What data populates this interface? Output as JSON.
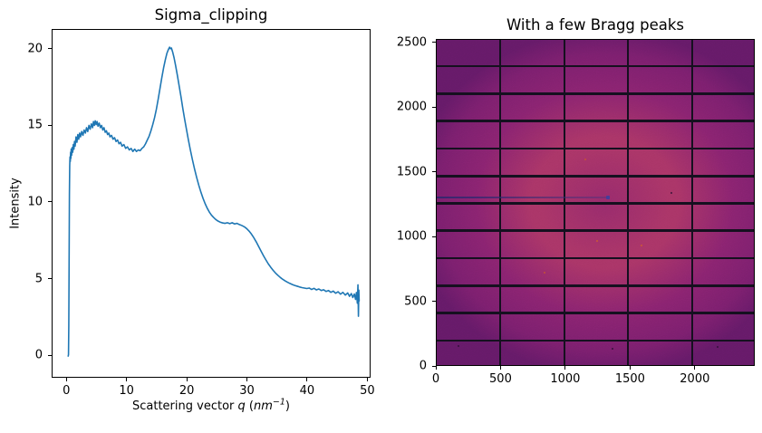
{
  "figure": {
    "background": "#ffffff"
  },
  "chart_data": [
    {
      "type": "line",
      "title": "Sigma_clipping",
      "xlabel": "Scattering vector q (nm−1)",
      "xlabel_parts": {
        "prefix": "Scattering vector ",
        "q": "q",
        "open": " (",
        "unit": "nm",
        "sup": "−1",
        "close": ")"
      },
      "ylabel": "Intensity",
      "line_color": "#1f77b4",
      "line_width": 1.6,
      "xlim": [
        -2.45,
        50.55
      ],
      "ylim": [
        -1.47,
        21.28
      ],
      "xticks": [
        0,
        10,
        20,
        30,
        40,
        50
      ],
      "yticks": [
        0,
        5,
        10,
        15,
        20
      ],
      "grid": false,
      "legend": null,
      "points": [
        [
          0.15,
          0.0
        ],
        [
          0.2,
          0.1
        ],
        [
          0.25,
          2.0
        ],
        [
          0.3,
          6.0
        ],
        [
          0.35,
          10.5
        ],
        [
          0.4,
          12.4
        ],
        [
          0.45,
          13.0
        ],
        [
          0.5,
          12.7
        ],
        [
          0.55,
          13.3
        ],
        [
          0.6,
          12.9
        ],
        [
          0.65,
          13.5
        ],
        [
          0.72,
          13.1
        ],
        [
          0.8,
          13.6
        ],
        [
          0.9,
          13.3
        ],
        [
          1.0,
          13.8
        ],
        [
          1.1,
          13.5
        ],
        [
          1.2,
          14.0
        ],
        [
          1.3,
          13.7
        ],
        [
          1.45,
          14.3
        ],
        [
          1.6,
          13.95
        ],
        [
          1.75,
          14.45
        ],
        [
          1.9,
          14.15
        ],
        [
          2.05,
          14.55
        ],
        [
          2.2,
          14.3
        ],
        [
          2.4,
          14.65
        ],
        [
          2.6,
          14.4
        ],
        [
          2.8,
          14.75
        ],
        [
          3.0,
          14.55
        ],
        [
          3.2,
          14.9
        ],
        [
          3.4,
          14.65
        ],
        [
          3.6,
          15.05
        ],
        [
          3.8,
          14.8
        ],
        [
          4.0,
          15.15
        ],
        [
          4.2,
          14.9
        ],
        [
          4.35,
          15.3
        ],
        [
          4.5,
          15.05
        ],
        [
          4.65,
          15.35
        ],
        [
          4.8,
          15.1
        ],
        [
          4.95,
          15.3
        ],
        [
          5.1,
          15.0
        ],
        [
          5.3,
          15.2
        ],
        [
          5.5,
          14.9
        ],
        [
          5.7,
          15.05
        ],
        [
          5.9,
          14.75
        ],
        [
          6.1,
          14.9
        ],
        [
          6.3,
          14.6
        ],
        [
          6.5,
          14.7
        ],
        [
          6.7,
          14.45
        ],
        [
          6.9,
          14.55
        ],
        [
          7.1,
          14.3
        ],
        [
          7.35,
          14.4
        ],
        [
          7.6,
          14.15
        ],
        [
          7.85,
          14.25
        ],
        [
          8.1,
          14.0
        ],
        [
          8.35,
          14.1
        ],
        [
          8.6,
          13.85
        ],
        [
          8.85,
          13.95
        ],
        [
          9.1,
          13.7
        ],
        [
          9.4,
          13.8
        ],
        [
          9.7,
          13.55
        ],
        [
          10.0,
          13.65
        ],
        [
          10.3,
          13.45
        ],
        [
          10.6,
          13.55
        ],
        [
          10.9,
          13.35
        ],
        [
          11.2,
          13.5
        ],
        [
          11.5,
          13.35
        ],
        [
          11.8,
          13.45
        ],
        [
          12.1,
          13.4
        ],
        [
          12.4,
          13.55
        ],
        [
          12.7,
          13.65
        ],
        [
          13.0,
          13.85
        ],
        [
          13.3,
          14.1
        ],
        [
          13.6,
          14.35
        ],
        [
          13.9,
          14.7
        ],
        [
          14.2,
          15.1
        ],
        [
          14.5,
          15.55
        ],
        [
          14.8,
          16.1
        ],
        [
          15.1,
          16.75
        ],
        [
          15.4,
          17.45
        ],
        [
          15.7,
          18.15
        ],
        [
          16.0,
          18.8
        ],
        [
          16.3,
          19.35
        ],
        [
          16.55,
          19.75
        ],
        [
          16.8,
          20.0
        ],
        [
          17.0,
          20.15
        ],
        [
          17.15,
          20.05
        ],
        [
          17.3,
          20.1
        ],
        [
          17.5,
          19.85
        ],
        [
          17.75,
          19.45
        ],
        [
          18.0,
          18.95
        ],
        [
          18.3,
          18.3
        ],
        [
          18.6,
          17.6
        ],
        [
          18.9,
          16.9
        ],
        [
          19.2,
          16.15
        ],
        [
          19.5,
          15.45
        ],
        [
          19.8,
          14.8
        ],
        [
          20.1,
          14.15
        ],
        [
          20.45,
          13.45
        ],
        [
          20.8,
          12.8
        ],
        [
          21.15,
          12.2
        ],
        [
          21.5,
          11.65
        ],
        [
          21.85,
          11.15
        ],
        [
          22.2,
          10.7
        ],
        [
          22.55,
          10.3
        ],
        [
          22.9,
          9.95
        ],
        [
          23.25,
          9.65
        ],
        [
          23.6,
          9.4
        ],
        [
          23.95,
          9.2
        ],
        [
          24.3,
          9.05
        ],
        [
          24.65,
          8.92
        ],
        [
          25.0,
          8.82
        ],
        [
          25.4,
          8.74
        ],
        [
          25.8,
          8.69
        ],
        [
          26.2,
          8.66
        ],
        [
          26.6,
          8.7
        ],
        [
          27.0,
          8.64
        ],
        [
          27.4,
          8.7
        ],
        [
          27.8,
          8.62
        ],
        [
          28.2,
          8.66
        ],
        [
          28.6,
          8.58
        ],
        [
          29.0,
          8.52
        ],
        [
          29.4,
          8.44
        ],
        [
          29.8,
          8.32
        ],
        [
          30.2,
          8.16
        ],
        [
          30.6,
          7.96
        ],
        [
          31.0,
          7.72
        ],
        [
          31.4,
          7.45
        ],
        [
          31.8,
          7.15
        ],
        [
          32.2,
          6.85
        ],
        [
          32.6,
          6.55
        ],
        [
          33.0,
          6.28
        ],
        [
          33.4,
          6.02
        ],
        [
          33.8,
          5.8
        ],
        [
          34.2,
          5.6
        ],
        [
          34.6,
          5.42
        ],
        [
          35.0,
          5.27
        ],
        [
          35.4,
          5.13
        ],
        [
          35.8,
          5.01
        ],
        [
          36.2,
          4.91
        ],
        [
          36.6,
          4.82
        ],
        [
          37.0,
          4.74
        ],
        [
          37.4,
          4.67
        ],
        [
          37.8,
          4.61
        ],
        [
          38.2,
          4.56
        ],
        [
          38.6,
          4.51
        ],
        [
          39.0,
          4.47
        ],
        [
          39.4,
          4.44
        ],
        [
          39.8,
          4.41
        ],
        [
          40.2,
          4.44
        ],
        [
          40.6,
          4.35
        ],
        [
          41.0,
          4.42
        ],
        [
          41.4,
          4.32
        ],
        [
          41.8,
          4.38
        ],
        [
          42.2,
          4.28
        ],
        [
          42.6,
          4.33
        ],
        [
          43.0,
          4.22
        ],
        [
          43.4,
          4.28
        ],
        [
          43.8,
          4.16
        ],
        [
          44.2,
          4.24
        ],
        [
          44.6,
          4.1
        ],
        [
          45.0,
          4.2
        ],
        [
          45.4,
          4.04
        ],
        [
          45.8,
          4.16
        ],
        [
          46.2,
          3.98
        ],
        [
          46.6,
          4.12
        ],
        [
          46.9,
          3.9
        ],
        [
          47.2,
          4.08
        ],
        [
          47.45,
          3.82
        ],
        [
          47.7,
          4.05
        ],
        [
          47.9,
          3.7
        ],
        [
          48.05,
          4.15
        ],
        [
          48.2,
          3.45
        ],
        [
          48.3,
          4.65
        ],
        [
          48.38,
          2.6
        ],
        [
          48.45,
          4.3
        ],
        [
          48.5,
          3.6
        ]
      ]
    },
    {
      "type": "heatmap",
      "title": "With a few Bragg peaks",
      "xlim": [
        0,
        2463
      ],
      "ylim": [
        0,
        2527
      ],
      "xticks": [
        0,
        500,
        1000,
        1500,
        2000
      ],
      "yticks": [
        0,
        500,
        1000,
        1500,
        2000,
        2500
      ],
      "detector": {
        "columns": 5,
        "rows": 12,
        "module_width": 487,
        "module_height": 195,
        "gap_width": 7,
        "gap_height": 17
      },
      "colors": {
        "corner_dark": "#661a68",
        "mid": "#7c1f6e",
        "ring_bright": "#aa3567",
        "center_dim": "#93286d",
        "gap": "#15101f"
      },
      "streak": {
        "y": 1309,
        "x_start": 0,
        "x_end": 1319,
        "color_left": "rgba(42,38,110,0.85)",
        "color_right": "rgba(62,52,130,0.35)"
      },
      "bragg_peaks": [
        {
          "x": 1319,
          "y": 1309,
          "size": 4,
          "color": "#3c3f9e"
        },
        {
          "x": 1238,
          "y": 973,
          "size": 2,
          "color": "#cf5c31"
        },
        {
          "x": 1581,
          "y": 938,
          "size": 2,
          "color": "#cf5c31"
        },
        {
          "x": 1147,
          "y": 1603,
          "size": 2,
          "color": "#c85530"
        },
        {
          "x": 833,
          "y": 728,
          "size": 2,
          "color": "#c85530"
        }
      ],
      "dead_pixels": [
        {
          "x": 1812,
          "y": 1344
        },
        {
          "x": 168,
          "y": 161
        },
        {
          "x": 1357,
          "y": 140
        },
        {
          "x": 2169,
          "y": 154
        }
      ]
    }
  ]
}
